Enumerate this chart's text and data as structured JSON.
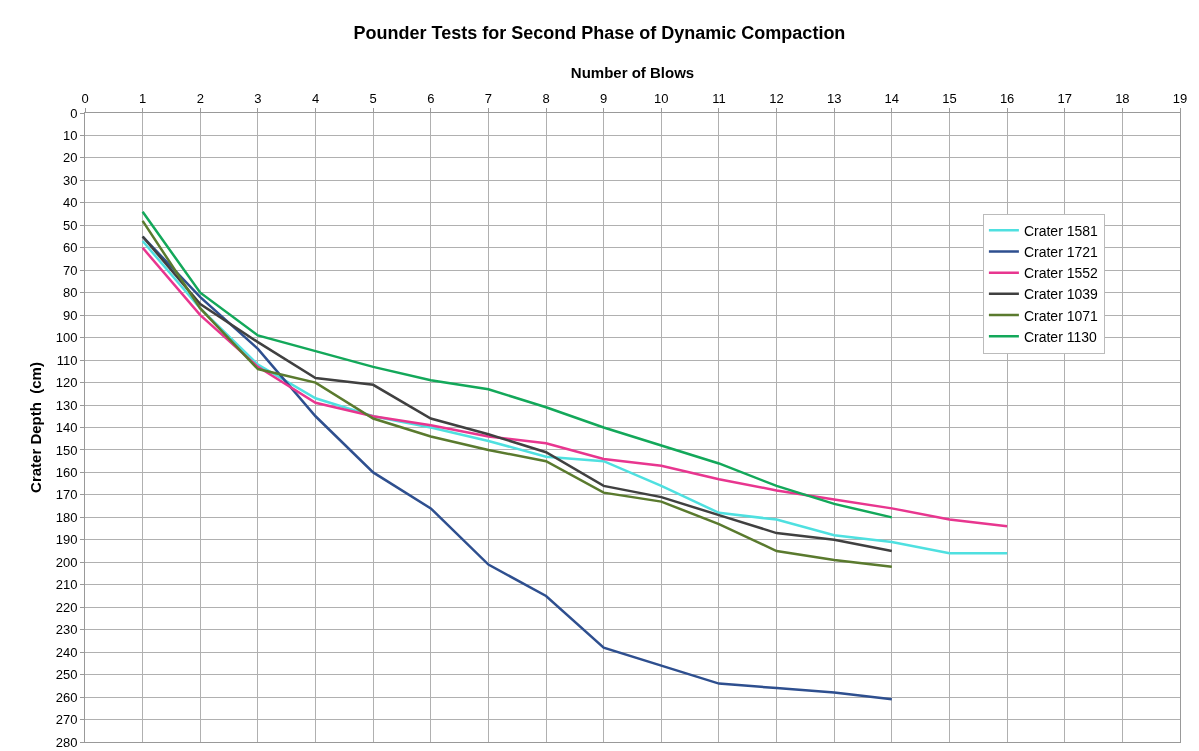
{
  "chart_data": {
    "type": "line",
    "title": "Pounder Tests for Second Phase of Dynamic Compaction",
    "xlabel": "Number of Blows",
    "ylabel": "Crater Depth  (cm)",
    "x": [
      1,
      2,
      3,
      4,
      5,
      6,
      7,
      8,
      9,
      10,
      11,
      12,
      13,
      14,
      15,
      16
    ],
    "xlim": [
      0,
      19
    ],
    "xticks": [
      0,
      1,
      2,
      3,
      4,
      5,
      6,
      7,
      8,
      9,
      10,
      11,
      12,
      13,
      14,
      15,
      16,
      17,
      18,
      19
    ],
    "ylim": [
      280,
      0
    ],
    "yticks": [
      0,
      10,
      20,
      30,
      40,
      50,
      60,
      70,
      80,
      90,
      100,
      110,
      120,
      130,
      140,
      150,
      160,
      170,
      180,
      190,
      200,
      210,
      220,
      230,
      240,
      250,
      260,
      270,
      280
    ],
    "grid": true,
    "legend": "right",
    "marker": "none",
    "line_style": "solid",
    "series": [
      {
        "name": "Crater 1581",
        "color": "#4fe0e0",
        "values": [
          57,
          87,
          112,
          127,
          135,
          140,
          146,
          153,
          155,
          166,
          178,
          181,
          188,
          191,
          196,
          196
        ]
      },
      {
        "name": "Crater 1721",
        "color": "#2e4f8f",
        "values": [
          55,
          82,
          105,
          135,
          160,
          176,
          201,
          215,
          238,
          246,
          254,
          256,
          258,
          261,
          null,
          null
        ]
      },
      {
        "name": "Crater 1552",
        "color": "#e8368f",
        "values": [
          60,
          90,
          113,
          129,
          135,
          139,
          144,
          147,
          154,
          157,
          163,
          168,
          172,
          176,
          181,
          184
        ]
      },
      {
        "name": "Crater 1039",
        "color": "#404040",
        "values": [
          55,
          85,
          102,
          118,
          121,
          136,
          143,
          151,
          166,
          171,
          179,
          187,
          190,
          195,
          null,
          null
        ]
      },
      {
        "name": "Crater 1071",
        "color": "#5a7a2e",
        "values": [
          48,
          87,
          114,
          120,
          136,
          144,
          150,
          155,
          169,
          173,
          183,
          195,
          199,
          202,
          null,
          null
        ]
      },
      {
        "name": "Crater 1130",
        "color": "#13a85a",
        "values": [
          44,
          80,
          99,
          106,
          113,
          119,
          123,
          131,
          140,
          148,
          156,
          166,
          174,
          180,
          null,
          null
        ]
      }
    ]
  }
}
